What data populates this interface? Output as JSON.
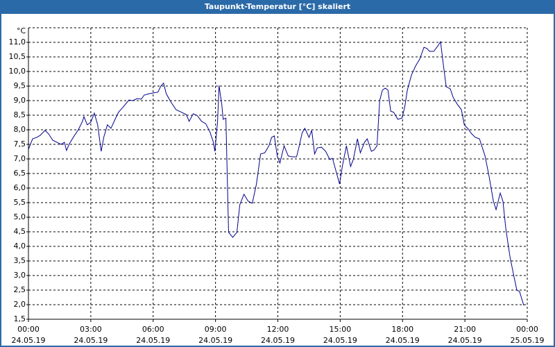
{
  "chart_data": {
    "type": "line",
    "title": "Taupunkt-Temperatur [°C] skaliert",
    "y_unit": "°C",
    "color": "#00008b",
    "grid": true,
    "xlim": [
      0,
      24
    ],
    "xticks": [
      {
        "value": 0,
        "label": [
          "00:00",
          "24.05.19"
        ]
      },
      {
        "value": 3,
        "label": [
          "03:00",
          "24.05.19"
        ]
      },
      {
        "value": 6,
        "label": [
          "06:00",
          "24.05.19"
        ]
      },
      {
        "value": 9,
        "label": [
          "09:00",
          "24.05.19"
        ]
      },
      {
        "value": 12,
        "label": [
          "12:00",
          "24.05.19"
        ]
      },
      {
        "value": 15,
        "label": [
          "15:00",
          "24.05.19"
        ]
      },
      {
        "value": 18,
        "label": [
          "18:00",
          "24.05.19"
        ]
      },
      {
        "value": 21,
        "label": [
          "21:00",
          "24.05.19"
        ]
      },
      {
        "value": 24,
        "label": [
          "00:00",
          "25.05.19"
        ]
      }
    ],
    "ylim": [
      1.5,
      11.5
    ],
    "yticks": [
      {
        "value": 1.5,
        "label": "1,5"
      },
      {
        "value": 2,
        "label": "2,0"
      },
      {
        "value": 2.5,
        "label": "2,5"
      },
      {
        "value": 3,
        "label": "3,0"
      },
      {
        "value": 3.5,
        "label": "3,5"
      },
      {
        "value": 4,
        "label": "4,0"
      },
      {
        "value": 4.5,
        "label": "4,5"
      },
      {
        "value": 5,
        "label": "5,0"
      },
      {
        "value": 5.5,
        "label": "5,5"
      },
      {
        "value": 6,
        "label": "6,0"
      },
      {
        "value": 6.5,
        "label": "6,5"
      },
      {
        "value": 7,
        "label": "7,0"
      },
      {
        "value": 7.5,
        "label": "7,5"
      },
      {
        "value": 8,
        "label": "8,0"
      },
      {
        "value": 8.5,
        "label": "8,5"
      },
      {
        "value": 9,
        "label": "9,0"
      },
      {
        "value": 9.5,
        "label": "9,5"
      },
      {
        "value": 10,
        "label": "10,0"
      },
      {
        "value": 10.5,
        "label": "10,5"
      },
      {
        "value": 11,
        "label": "11,0"
      }
    ],
    "x": [
      0,
      0.2,
      0.4,
      0.57,
      0.8,
      0.97,
      1.17,
      1.37,
      1.57,
      1.73,
      1.83,
      1.97,
      2.2,
      2.4,
      2.6,
      2.67,
      2.83,
      3.0,
      3.17,
      3.33,
      3.5,
      3.63,
      3.8,
      3.97,
      4.17,
      4.33,
      4.57,
      4.83,
      5.03,
      5.23,
      5.43,
      5.57,
      5.83,
      6.23,
      6.37,
      6.5,
      6.63,
      6.83,
      7.1,
      7.37,
      7.6,
      7.73,
      7.93,
      8.13,
      8.33,
      8.53,
      8.73,
      8.9,
      8.97,
      9.1,
      9.17,
      9.3,
      9.37,
      9.5,
      9.63,
      9.83,
      10.03,
      10.17,
      10.37,
      10.57,
      10.77,
      10.97,
      11.17,
      11.37,
      11.57,
      11.7,
      11.83,
      11.97,
      12.1,
      12.3,
      12.5,
      12.7,
      12.9,
      13.03,
      13.17,
      13.3,
      13.5,
      13.63,
      13.77,
      13.9,
      14.1,
      14.3,
      14.5,
      14.63,
      14.83,
      14.97,
      15.1,
      15.3,
      15.5,
      15.63,
      15.83,
      15.97,
      16.17,
      16.3,
      16.5,
      16.63,
      16.77,
      16.9,
      17.03,
      17.17,
      17.3,
      17.43,
      17.57,
      17.77,
      17.97,
      18.1,
      18.23,
      18.43,
      18.63,
      18.83,
      19.03,
      19.17,
      19.3,
      19.5,
      19.7,
      19.83,
      19.97,
      20.1,
      20.3,
      20.43,
      20.63,
      20.83,
      20.97,
      21.17,
      21.3,
      21.5,
      21.7,
      21.97,
      22.17,
      22.37,
      22.5,
      22.7,
      22.83,
      22.97,
      23.17,
      23.37,
      23.5,
      23.63,
      23.83
    ],
    "values": [
      7.33,
      7.69,
      7.74,
      7.81,
      7.98,
      7.86,
      7.64,
      7.57,
      7.5,
      7.57,
      7.29,
      7.52,
      7.79,
      8.0,
      8.29,
      8.45,
      8.17,
      8.26,
      8.57,
      8.17,
      7.26,
      7.76,
      8.17,
      8.05,
      8.36,
      8.6,
      8.79,
      9.02,
      9.0,
      9.07,
      9.05,
      9.19,
      9.24,
      9.29,
      9.5,
      9.6,
      9.24,
      8.98,
      8.69,
      8.6,
      8.52,
      8.29,
      8.55,
      8.48,
      8.29,
      8.21,
      7.93,
      7.57,
      7.26,
      8.29,
      9.52,
      8.88,
      8.36,
      8.4,
      4.48,
      4.31,
      4.48,
      5.43,
      5.79,
      5.55,
      5.48,
      6.14,
      7.17,
      7.21,
      7.45,
      7.74,
      7.79,
      7.1,
      6.86,
      7.45,
      7.1,
      7.07,
      7.07,
      7.45,
      7.9,
      8.05,
      7.74,
      7.98,
      7.17,
      7.38,
      7.4,
      7.26,
      6.98,
      7.02,
      6.5,
      6.14,
      6.74,
      7.45,
      6.74,
      6.98,
      7.69,
      7.21,
      7.57,
      7.69,
      7.26,
      7.31,
      7.45,
      9.0,
      9.36,
      9.43,
      9.36,
      8.64,
      8.6,
      8.36,
      8.4,
      8.76,
      9.36,
      9.88,
      10.19,
      10.43,
      10.83,
      10.79,
      10.69,
      10.69,
      10.88,
      11.02,
      10.19,
      9.48,
      9.4,
      9.12,
      8.88,
      8.69,
      8.17,
      8.02,
      7.88,
      7.74,
      7.69,
      7.1,
      6.38,
      5.55,
      5.26,
      5.83,
      5.55,
      4.6,
      3.64,
      2.93,
      2.5,
      2.45,
      1.98
    ]
  }
}
